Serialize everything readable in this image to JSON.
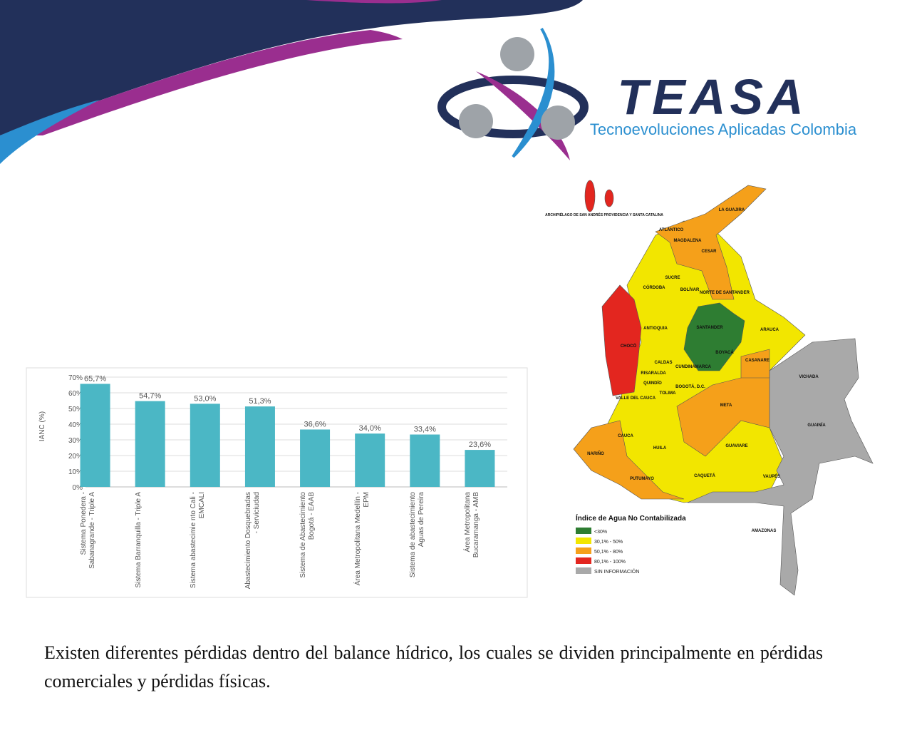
{
  "logo": {
    "name": "TEASA",
    "tagline": "Tecnoevoluciones Aplicadas Colombia"
  },
  "chart_data": {
    "type": "bar",
    "ylabel": "IANC (%)",
    "categories": [
      "Sistema Ponedera - Sabanagrande - Triple A",
      "Sistema Barranquilla - Triple A",
      "Sistema abastecimie nto Cali - EMCALI",
      "Abastecimiento Dosquebradas - Serviciudad",
      "Sistema de Abastecimiento Bogotá - EAAB",
      "Área Metropolitana Medellín - EPM",
      "Sistema de abastecimiento Aguas de Pereira",
      "Área Metropolitana Bucaramanga - AMB"
    ],
    "values": [
      65.7,
      54.7,
      53.0,
      51.3,
      36.6,
      34.0,
      33.4,
      23.6
    ],
    "value_labels": [
      "65,7%",
      "54,7%",
      "53,0%",
      "51,3%",
      "36,6%",
      "34,0%",
      "33,4%",
      "23,6%"
    ],
    "color": "#4bb7c5",
    "ylim": [
      0,
      70
    ],
    "yticks": [
      {
        "value": 0,
        "label": "0%"
      },
      {
        "value": 10,
        "label": "10%"
      },
      {
        "value": 20,
        "label": "20%"
      },
      {
        "value": 30,
        "label": "30%"
      },
      {
        "value": 40,
        "label": "40%"
      },
      {
        "value": 50,
        "label": "50%"
      },
      {
        "value": 60,
        "label": "60%"
      },
      {
        "value": 70,
        "label": "70%"
      }
    ],
    "grid": true
  },
  "map": {
    "departments": [
      "ARCHIPIÉLAGO DE SAN ANDRÉS PROVIDENCIA Y SANTA CATALINA",
      "LA GUAJIRA",
      "ATLÁNTICO",
      "MAGDALENA",
      "CESAR",
      "SUCRE",
      "CÓRDOBA",
      "BOLÍVAR",
      "NORTE DE SANTANDER",
      "SANTANDER",
      "ARAUCA",
      "ANTIOQUIA",
      "CHOCÓ",
      "BOYACÁ",
      "CASANARE",
      "CALDAS",
      "CUNDINAMARCA",
      "RISARALDA",
      "QUINDÍO",
      "BOGOTÁ, D.C.",
      "TOLIMA",
      "VALLE DEL CAUCA",
      "VICHADA",
      "META",
      "GUAINÍA",
      "CAUCA",
      "HUILA",
      "GUAVIARE",
      "NARIÑO",
      "VAUPÉS",
      "CAQUETÁ",
      "PUTUMAYO",
      "AMAZONAS"
    ],
    "legend": {
      "title": "Índice de Agua No Contabilizada",
      "items": [
        {
          "label": "<30%",
          "color": "#2e7d32"
        },
        {
          "label": "30,1% - 50%",
          "color": "#f2e600"
        },
        {
          "label": "50,1% - 80%",
          "color": "#f5a01a"
        },
        {
          "label": "80,1% - 100%",
          "color": "#e3261f"
        },
        {
          "label": "SIN INFORMACIÓN",
          "color": "#a9a9a9"
        }
      ]
    }
  },
  "paragraph": "Existen diferentes pérdidas dentro del balance hídrico, los cuales se dividen principalmente en pérdidas comerciales y pérdidas físicas."
}
